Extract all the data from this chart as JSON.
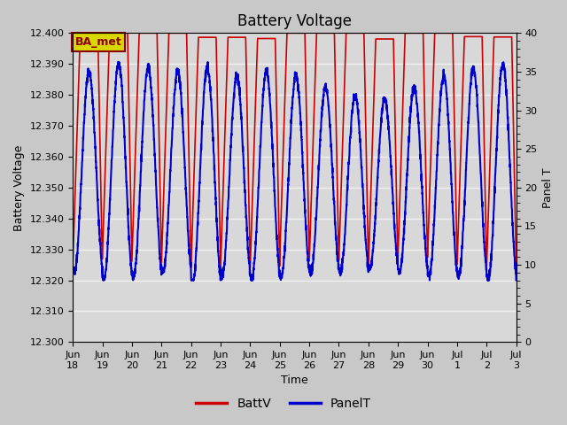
{
  "title": "Battery Voltage",
  "xlabel": "Time",
  "ylabel_left": "Battery Voltage",
  "ylabel_right": "Panel T",
  "ylim_left": [
    12.3,
    12.4
  ],
  "ylim_right": [
    0,
    40
  ],
  "yticks_left": [
    12.3,
    12.31,
    12.32,
    12.33,
    12.34,
    12.35,
    12.36,
    12.37,
    12.38,
    12.39,
    12.4
  ],
  "yticks_right": [
    0,
    5,
    10,
    15,
    20,
    25,
    30,
    35,
    40
  ],
  "background_color": "#c8c8c8",
  "plot_bg_color": "#d8d8d8",
  "grid_color": "#f0f0f0",
  "annotation_text": "BA_met",
  "annotation_bg": "#d8d800",
  "legend_entries": [
    "BattV",
    "PanelT"
  ],
  "batt_color": "#cc0000",
  "panel_color": "#0000cc",
  "batt_linewidth": 1.2,
  "panel_linewidth": 1.5,
  "x_tick_labels": [
    "Jun\n18",
    "Jun\n19",
    "Jun\n20",
    "Jun\n21",
    "Jun\n22",
    "Jun\n23",
    "Jun\n24",
    "Jun\n25",
    "Jun\n26",
    "Jun\n27",
    "Jun\n28",
    "Jun\n29",
    "Jun\n30",
    "Jul\n1",
    "Jul\n2",
    "Jul\n3"
  ],
  "title_fontsize": 12,
  "axis_fontsize": 9,
  "tick_fontsize": 8
}
